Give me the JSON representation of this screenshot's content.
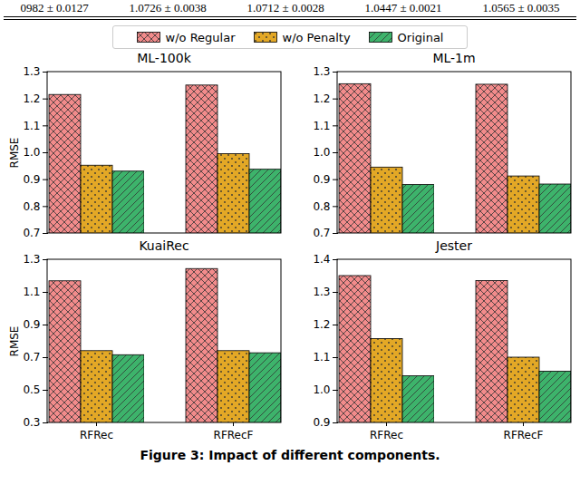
{
  "table_fragment": [
    "0982 ± 0.0127",
    "1.0726 ± 0.0038",
    "1.0712 ± 0.0028",
    "1.0447 ± 0.0021",
    "1.0565 ± 0.0035"
  ],
  "caption": "Figure 3: Impact of different components.",
  "chart_data": [
    {
      "type": "bar",
      "title": "ML-100k",
      "categories": [
        "RFRec",
        "RFRecF"
      ],
      "series": [
        {
          "name": "w/o Regular",
          "color": "#f28b8b",
          "values": [
            1.215,
            1.25
          ]
        },
        {
          "name": "w/o Penalty",
          "color": "#e3a826",
          "values": [
            0.952,
            0.995
          ]
        },
        {
          "name": "Original",
          "color": "#3db36b",
          "values": [
            0.93,
            0.937
          ]
        }
      ],
      "ylim": [
        0.7,
        1.3
      ],
      "yticks": [
        0.7,
        0.8,
        0.9,
        {
          "value": 1,
          "label": "1.0"
        },
        1.1,
        1.2,
        1.3
      ],
      "ylabel": "RMSE",
      "tick_labels": "y",
      "grid": false,
      "legend": "top"
    },
    {
      "type": "bar",
      "title": "ML-1m",
      "categories": [
        "RFRec",
        "RFRecF"
      ],
      "series": [
        {
          "name": "w/o Regular",
          "color": "#f28b8b",
          "values": [
            1.255,
            1.253
          ]
        },
        {
          "name": "w/o Penalty",
          "color": "#e3a826",
          "values": [
            0.945,
            0.912
          ]
        },
        {
          "name": "Original",
          "color": "#3db36b",
          "values": [
            0.88,
            0.882
          ]
        }
      ],
      "ylim": [
        0.7,
        1.3
      ],
      "yticks": [
        0.7,
        0.8,
        0.9,
        {
          "value": 1,
          "label": "1.0"
        },
        1.1,
        1.2,
        1.3
      ],
      "tick_labels": "y",
      "grid": false,
      "legend": "top"
    },
    {
      "type": "bar",
      "title": "KuaiRec",
      "categories": [
        "RFRec",
        "RFRecF"
      ],
      "series": [
        {
          "name": "w/o Regular",
          "color": "#f28b8b",
          "values": [
            1.168,
            1.243
          ]
        },
        {
          "name": "w/o Penalty",
          "color": "#e3a826",
          "values": [
            0.74,
            0.74
          ]
        },
        {
          "name": "Original",
          "color": "#3db36b",
          "values": [
            0.715,
            0.727
          ]
        }
      ],
      "ylim": [
        0.3,
        1.3
      ],
      "yticks": [
        0.3,
        0.5,
        0.7,
        0.9,
        1.1,
        1.3
      ],
      "ylabel": "RMSE",
      "grid": false,
      "legend": "top"
    },
    {
      "type": "bar",
      "title": "Jester",
      "categories": [
        "RFRec",
        "RFRecF"
      ],
      "series": [
        {
          "name": "w/o Regular",
          "color": "#f28b8b",
          "values": [
            1.35,
            1.335
          ]
        },
        {
          "name": "w/o Penalty",
          "color": "#e3a826",
          "values": [
            1.157,
            1.1
          ]
        },
        {
          "name": "Original",
          "color": "#3db36b",
          "values": [
            1.043,
            1.057
          ]
        }
      ],
      "ylim": [
        0.9,
        1.4
      ],
      "yticks": [
        0.9,
        {
          "value": 1,
          "label": "1.0"
        },
        1.1,
        1.2,
        1.3,
        1.4
      ],
      "grid": false,
      "legend": "top"
    }
  ]
}
